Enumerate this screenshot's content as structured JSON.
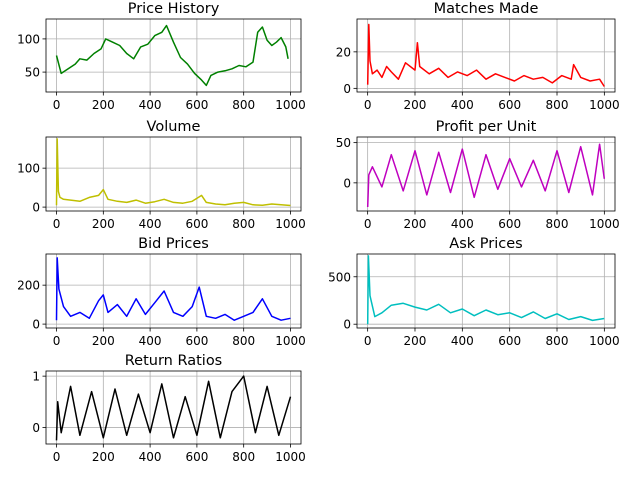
{
  "figure": {
    "background": "#ffffff"
  },
  "chart_data": [
    {
      "type": "line",
      "title": "Price History",
      "color": "#008000",
      "grid": true,
      "xlim": [
        -45,
        1045
      ],
      "ylim": [
        20,
        130
      ],
      "xticks": [
        0,
        200,
        400,
        600,
        800,
        1000
      ],
      "yticks": [
        50,
        100
      ],
      "series": [
        {
          "x": [
            0,
            20,
            50,
            80,
            100,
            130,
            160,
            190,
            210,
            240,
            270,
            300,
            330,
            360,
            390,
            420,
            450,
            470,
            500,
            530,
            560,
            590,
            620,
            640,
            660,
            690,
            720,
            750,
            780,
            810,
            840,
            860,
            880,
            900,
            920,
            940,
            960,
            980,
            990
          ],
          "y": [
            75,
            48,
            55,
            62,
            70,
            68,
            78,
            85,
            100,
            95,
            90,
            78,
            70,
            88,
            92,
            105,
            110,
            120,
            95,
            72,
            62,
            48,
            38,
            30,
            45,
            50,
            52,
            55,
            60,
            58,
            65,
            110,
            118,
            98,
            90,
            95,
            102,
            88,
            70
          ]
        }
      ]
    },
    {
      "type": "line",
      "title": "Matches Made",
      "color": "#ff0000",
      "grid": true,
      "xlim": [
        -45,
        1045
      ],
      "ylim": [
        -2,
        38
      ],
      "xticks": [
        0,
        200,
        400,
        600,
        800,
        1000
      ],
      "yticks": [
        0,
        20
      ],
      "series": [
        {
          "x": [
            0,
            5,
            10,
            20,
            40,
            60,
            80,
            100,
            130,
            160,
            200,
            210,
            220,
            260,
            300,
            340,
            380,
            420,
            460,
            500,
            540,
            580,
            620,
            660,
            700,
            740,
            780,
            820,
            860,
            870,
            900,
            940,
            980,
            1000
          ],
          "y": [
            2,
            35,
            15,
            8,
            10,
            6,
            12,
            9,
            5,
            14,
            10,
            25,
            12,
            8,
            11,
            6,
            9,
            7,
            10,
            5,
            8,
            6,
            4,
            7,
            5,
            6,
            3,
            7,
            5,
            13,
            6,
            4,
            5,
            1
          ]
        }
      ]
    },
    {
      "type": "line",
      "title": "Volume",
      "color": "#bfbf00",
      "grid": true,
      "xlim": [
        -45,
        1045
      ],
      "ylim": [
        -10,
        180
      ],
      "xticks": [
        0,
        200,
        400,
        600,
        800,
        1000
      ],
      "yticks": [
        0,
        100
      ],
      "series": [
        {
          "x": [
            0,
            3,
            8,
            15,
            30,
            60,
            100,
            140,
            180,
            200,
            220,
            260,
            300,
            340,
            380,
            420,
            460,
            500,
            540,
            580,
            620,
            640,
            680,
            720,
            760,
            800,
            840,
            880,
            920,
            960,
            1000
          ],
          "y": [
            5,
            175,
            40,
            25,
            20,
            18,
            15,
            25,
            30,
            45,
            20,
            15,
            12,
            18,
            10,
            14,
            20,
            12,
            10,
            15,
            30,
            12,
            8,
            6,
            10,
            12,
            6,
            5,
            8,
            6,
            4
          ]
        }
      ]
    },
    {
      "type": "line",
      "title": "Profit per Unit",
      "color": "#bf00bf",
      "grid": true,
      "xlim": [
        -45,
        1045
      ],
      "ylim": [
        -35,
        57
      ],
      "xticks": [
        0,
        200,
        400,
        600,
        800,
        1000
      ],
      "yticks": [
        0,
        50
      ],
      "series": [
        {
          "x": [
            0,
            5,
            20,
            60,
            100,
            150,
            200,
            250,
            300,
            350,
            400,
            450,
            500,
            550,
            600,
            650,
            700,
            750,
            800,
            850,
            900,
            950,
            980,
            1000
          ],
          "y": [
            -30,
            10,
            20,
            -5,
            35,
            -10,
            40,
            -15,
            38,
            -12,
            42,
            -18,
            35,
            -8,
            30,
            -5,
            28,
            -10,
            40,
            -12,
            45,
            -15,
            48,
            5
          ]
        }
      ]
    },
    {
      "type": "line",
      "title": "Bid Prices",
      "color": "#0000ff",
      "grid": true,
      "xlim": [
        -45,
        1045
      ],
      "ylim": [
        -20,
        360
      ],
      "xticks": [
        0,
        200,
        400,
        600,
        800,
        1000
      ],
      "yticks": [
        0,
        200
      ],
      "series": [
        {
          "x": [
            0,
            3,
            10,
            30,
            60,
            100,
            140,
            180,
            200,
            220,
            260,
            300,
            340,
            380,
            420,
            460,
            500,
            540,
            580,
            610,
            640,
            680,
            720,
            760,
            800,
            840,
            880,
            920,
            960,
            1000
          ],
          "y": [
            20,
            340,
            180,
            90,
            40,
            60,
            30,
            120,
            150,
            60,
            100,
            40,
            130,
            50,
            110,
            170,
            60,
            40,
            90,
            190,
            40,
            30,
            50,
            20,
            40,
            60,
            130,
            40,
            20,
            30
          ]
        }
      ]
    },
    {
      "type": "line",
      "title": "Ask Prices",
      "color": "#00bfbf",
      "grid": true,
      "xlim": [
        -45,
        1045
      ],
      "ylim": [
        -40,
        740
      ],
      "xticks": [
        0,
        200,
        400,
        600,
        800,
        1000
      ],
      "yticks": [
        0,
        500
      ],
      "series": [
        {
          "x": [
            0,
            3,
            10,
            30,
            60,
            100,
            150,
            200,
            250,
            300,
            350,
            400,
            450,
            500,
            550,
            600,
            650,
            700,
            750,
            800,
            850,
            900,
            950,
            1000
          ],
          "y": [
            0,
            720,
            300,
            80,
            120,
            200,
            220,
            180,
            150,
            210,
            120,
            160,
            90,
            150,
            100,
            120,
            70,
            130,
            60,
            110,
            50,
            80,
            40,
            60
          ]
        }
      ]
    },
    {
      "type": "line",
      "title": "Return Ratios",
      "color": "#000000",
      "grid": true,
      "xlim": [
        -45,
        1045
      ],
      "ylim": [
        -0.32,
        1.1
      ],
      "xticks": [
        0,
        200,
        400,
        600,
        800,
        1000
      ],
      "yticks": [
        0,
        1
      ],
      "series": [
        {
          "x": [
            0,
            5,
            20,
            60,
            100,
            150,
            200,
            250,
            300,
            350,
            400,
            450,
            500,
            550,
            600,
            650,
            700,
            750,
            800,
            850,
            900,
            950,
            1000
          ],
          "y": [
            -0.25,
            0.5,
            -0.1,
            0.8,
            -0.15,
            0.7,
            -0.2,
            0.75,
            -0.15,
            0.65,
            -0.1,
            0.85,
            -0.2,
            0.6,
            -0.15,
            0.9,
            -0.2,
            0.7,
            1.0,
            -0.1,
            0.8,
            -0.15,
            0.6
          ]
        }
      ]
    }
  ]
}
